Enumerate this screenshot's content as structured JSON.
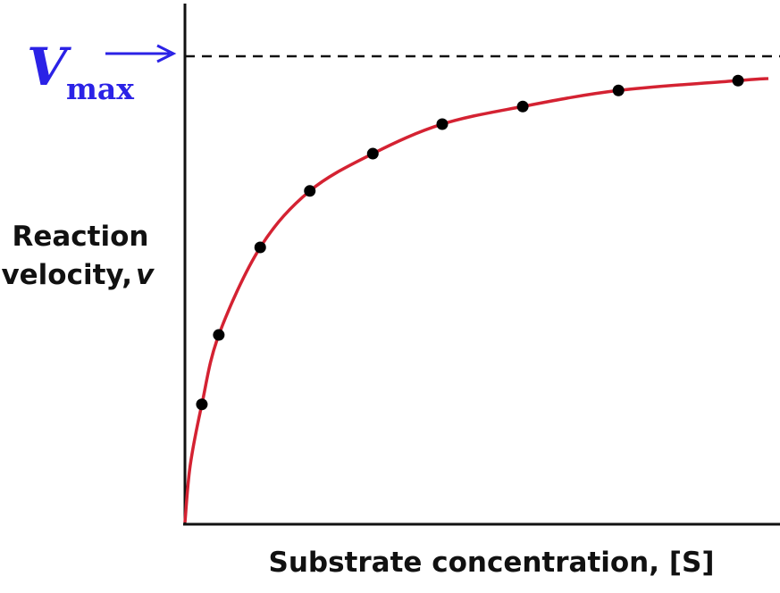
{
  "chart_data": {
    "type": "scatter",
    "x_label": "Substrate concentration, [S]",
    "y_label": {
      "lines": [
        "Reaction",
        "velocity,"
      ],
      "variable": "v"
    },
    "xlim": [
      0,
      100
    ],
    "ylim": [
      0,
      100
    ],
    "series": [
      {
        "kind": "points",
        "color": "#000000",
        "x": [
          2.9,
          5.8,
          12.9,
          21.4,
          32.2,
          44.1,
          57.9,
          74.3,
          94.8
        ],
        "values": [
          22.8,
          36.2,
          53.1,
          64.0,
          71.2,
          76.9,
          80.3,
          83.4,
          85.3
        ]
      },
      {
        "kind": "curve",
        "color": "#d42232",
        "x": [
          0,
          0.9,
          2.9,
          5.8,
          12.9,
          21.4,
          32.2,
          44.1,
          57.9,
          74.3,
          94.8,
          100
        ],
        "values": [
          0,
          11,
          22.8,
          36.2,
          53.1,
          64.0,
          71.2,
          76.9,
          80.3,
          83.4,
          85.3,
          85.7
        ]
      }
    ],
    "annotation": {
      "text": "V",
      "subscript": "max",
      "value": 90,
      "color": "#2b22e6"
    }
  }
}
